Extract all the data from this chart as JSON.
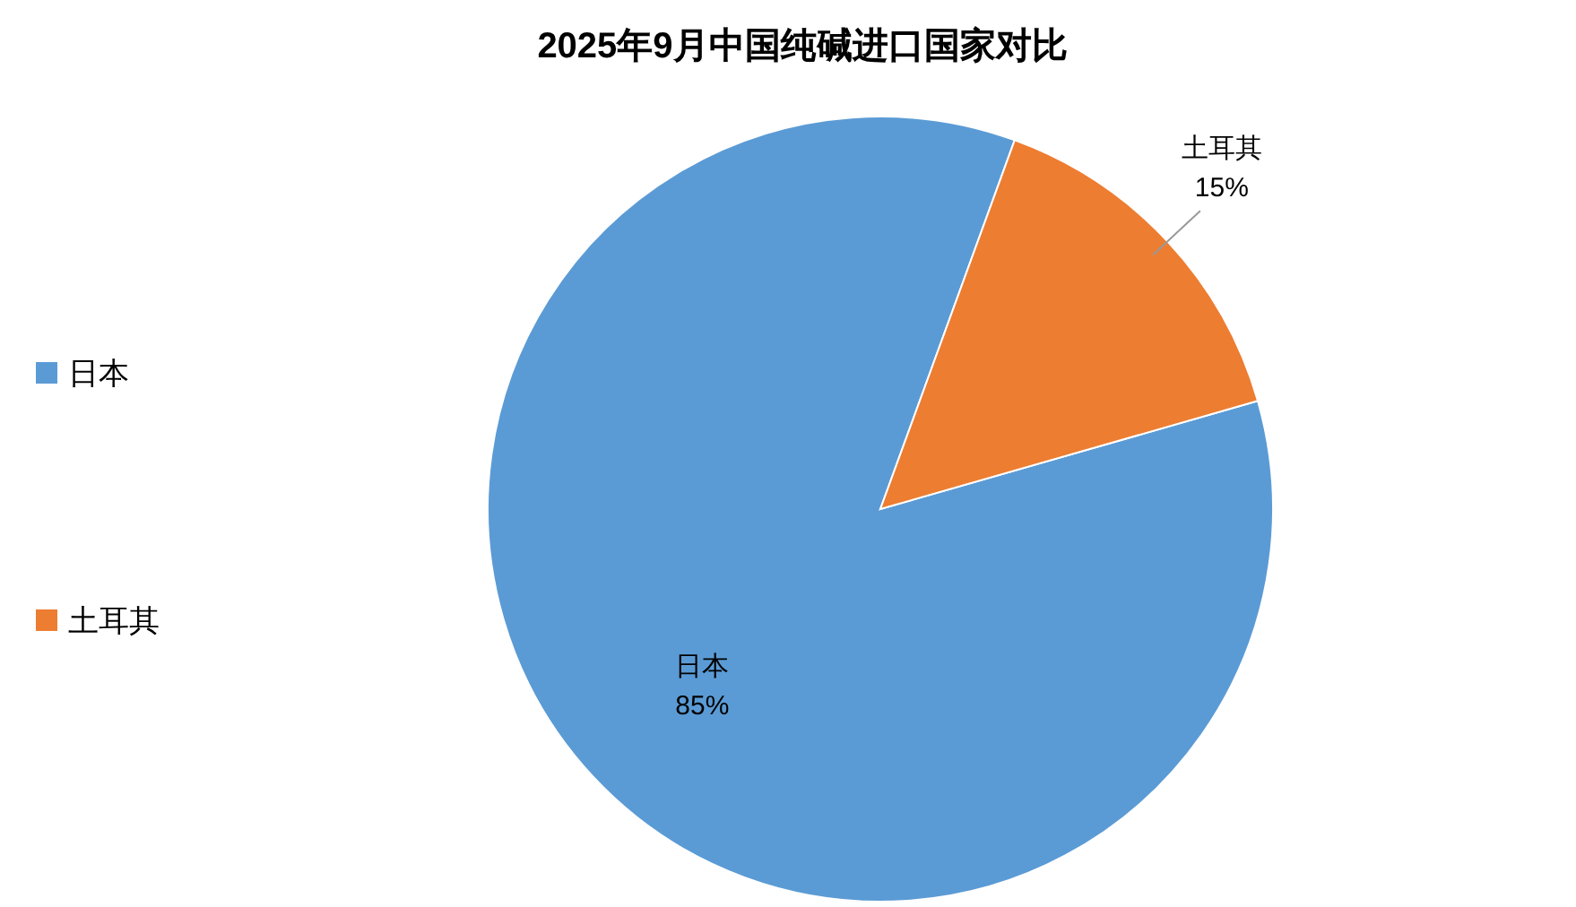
{
  "chart_data": {
    "type": "pie",
    "title": "2025年9月中国纯碱进口国家对比",
    "categories": [
      "日本",
      "土耳其"
    ],
    "values": [
      85,
      15
    ],
    "value_labels": [
      "85%",
      "15%"
    ],
    "colors": [
      "#5b9bd5",
      "#ed7d31"
    ],
    "legend": "left"
  }
}
